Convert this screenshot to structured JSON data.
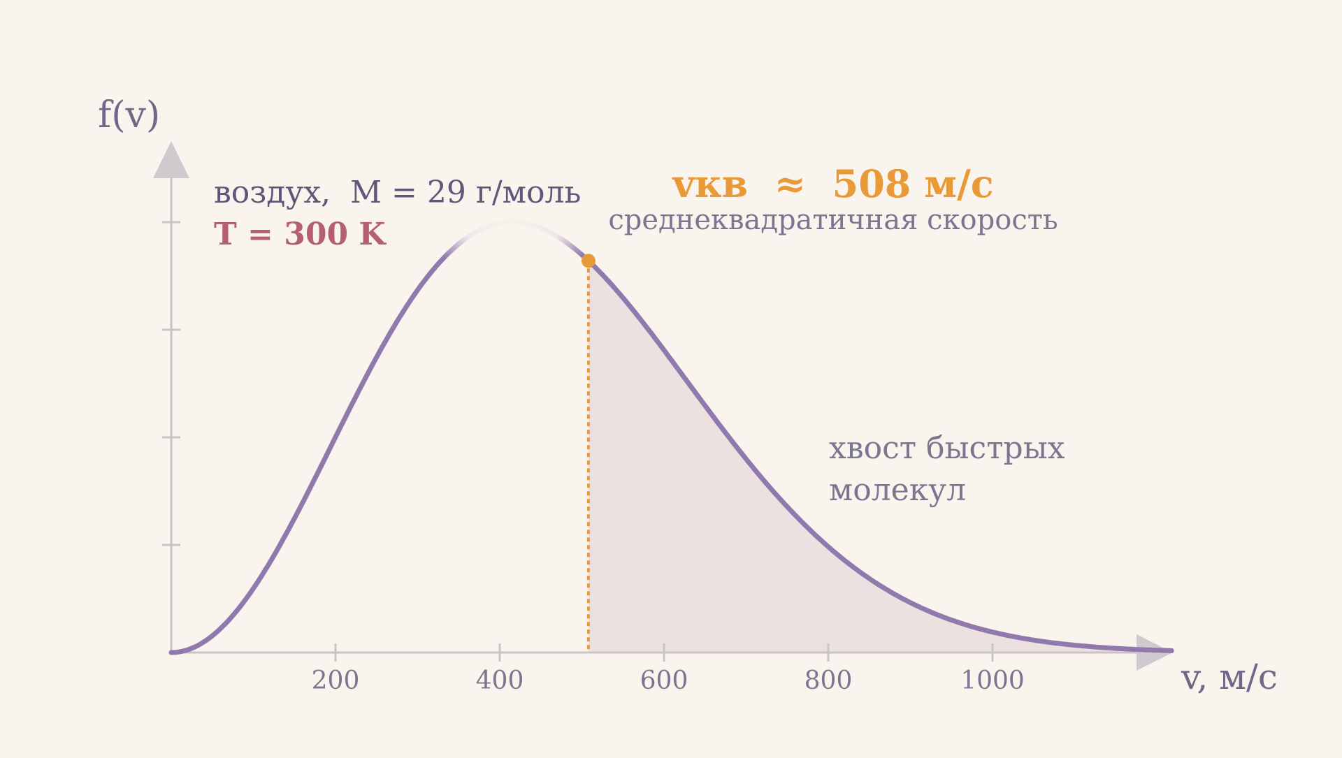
{
  "chart_data": {
    "type": "line",
    "title": "",
    "xlabel": "v, м/с",
    "ylabel": "f(v)",
    "xlim": [
      0,
      1220
    ],
    "ylim": [
      0,
      1.0
    ],
    "x_ticks": [
      200,
      400,
      600,
      800,
      1000
    ],
    "x_tick_labels": [
      "200",
      "400",
      "600",
      "800",
      "1000"
    ],
    "y_ticks_unlabeled": [
      0.25,
      0.5,
      0.75,
      1.0
    ],
    "grid": false,
    "series": [
      {
        "name": "",
        "distribution": "Maxwell",
        "peak_v": 415,
        "color": "#8f79ad"
      }
    ],
    "shaded_region": {
      "from": 508,
      "to": 1220,
      "color": "#e8dcdc"
    },
    "marker": {
      "x": 508,
      "color": "#e89a38"
    },
    "annotations": {
      "gas": "воздух,  М = 29 г/моль",
      "temperature": "T = 300 K",
      "vrms": "vкв  ≈  508 м/с",
      "vrms_caption": "среднеквадратичная скорость",
      "tail_line1": "хвост быстрых",
      "tail_line2": "молекул"
    },
    "colors": {
      "background": "#faf4ee",
      "axis": "#c9c3c6",
      "curve": "#8f79ad",
      "accent": "#e89a38",
      "temperature": "#b55f75",
      "text": "#5e5778",
      "caption": "#7b7690"
    }
  }
}
